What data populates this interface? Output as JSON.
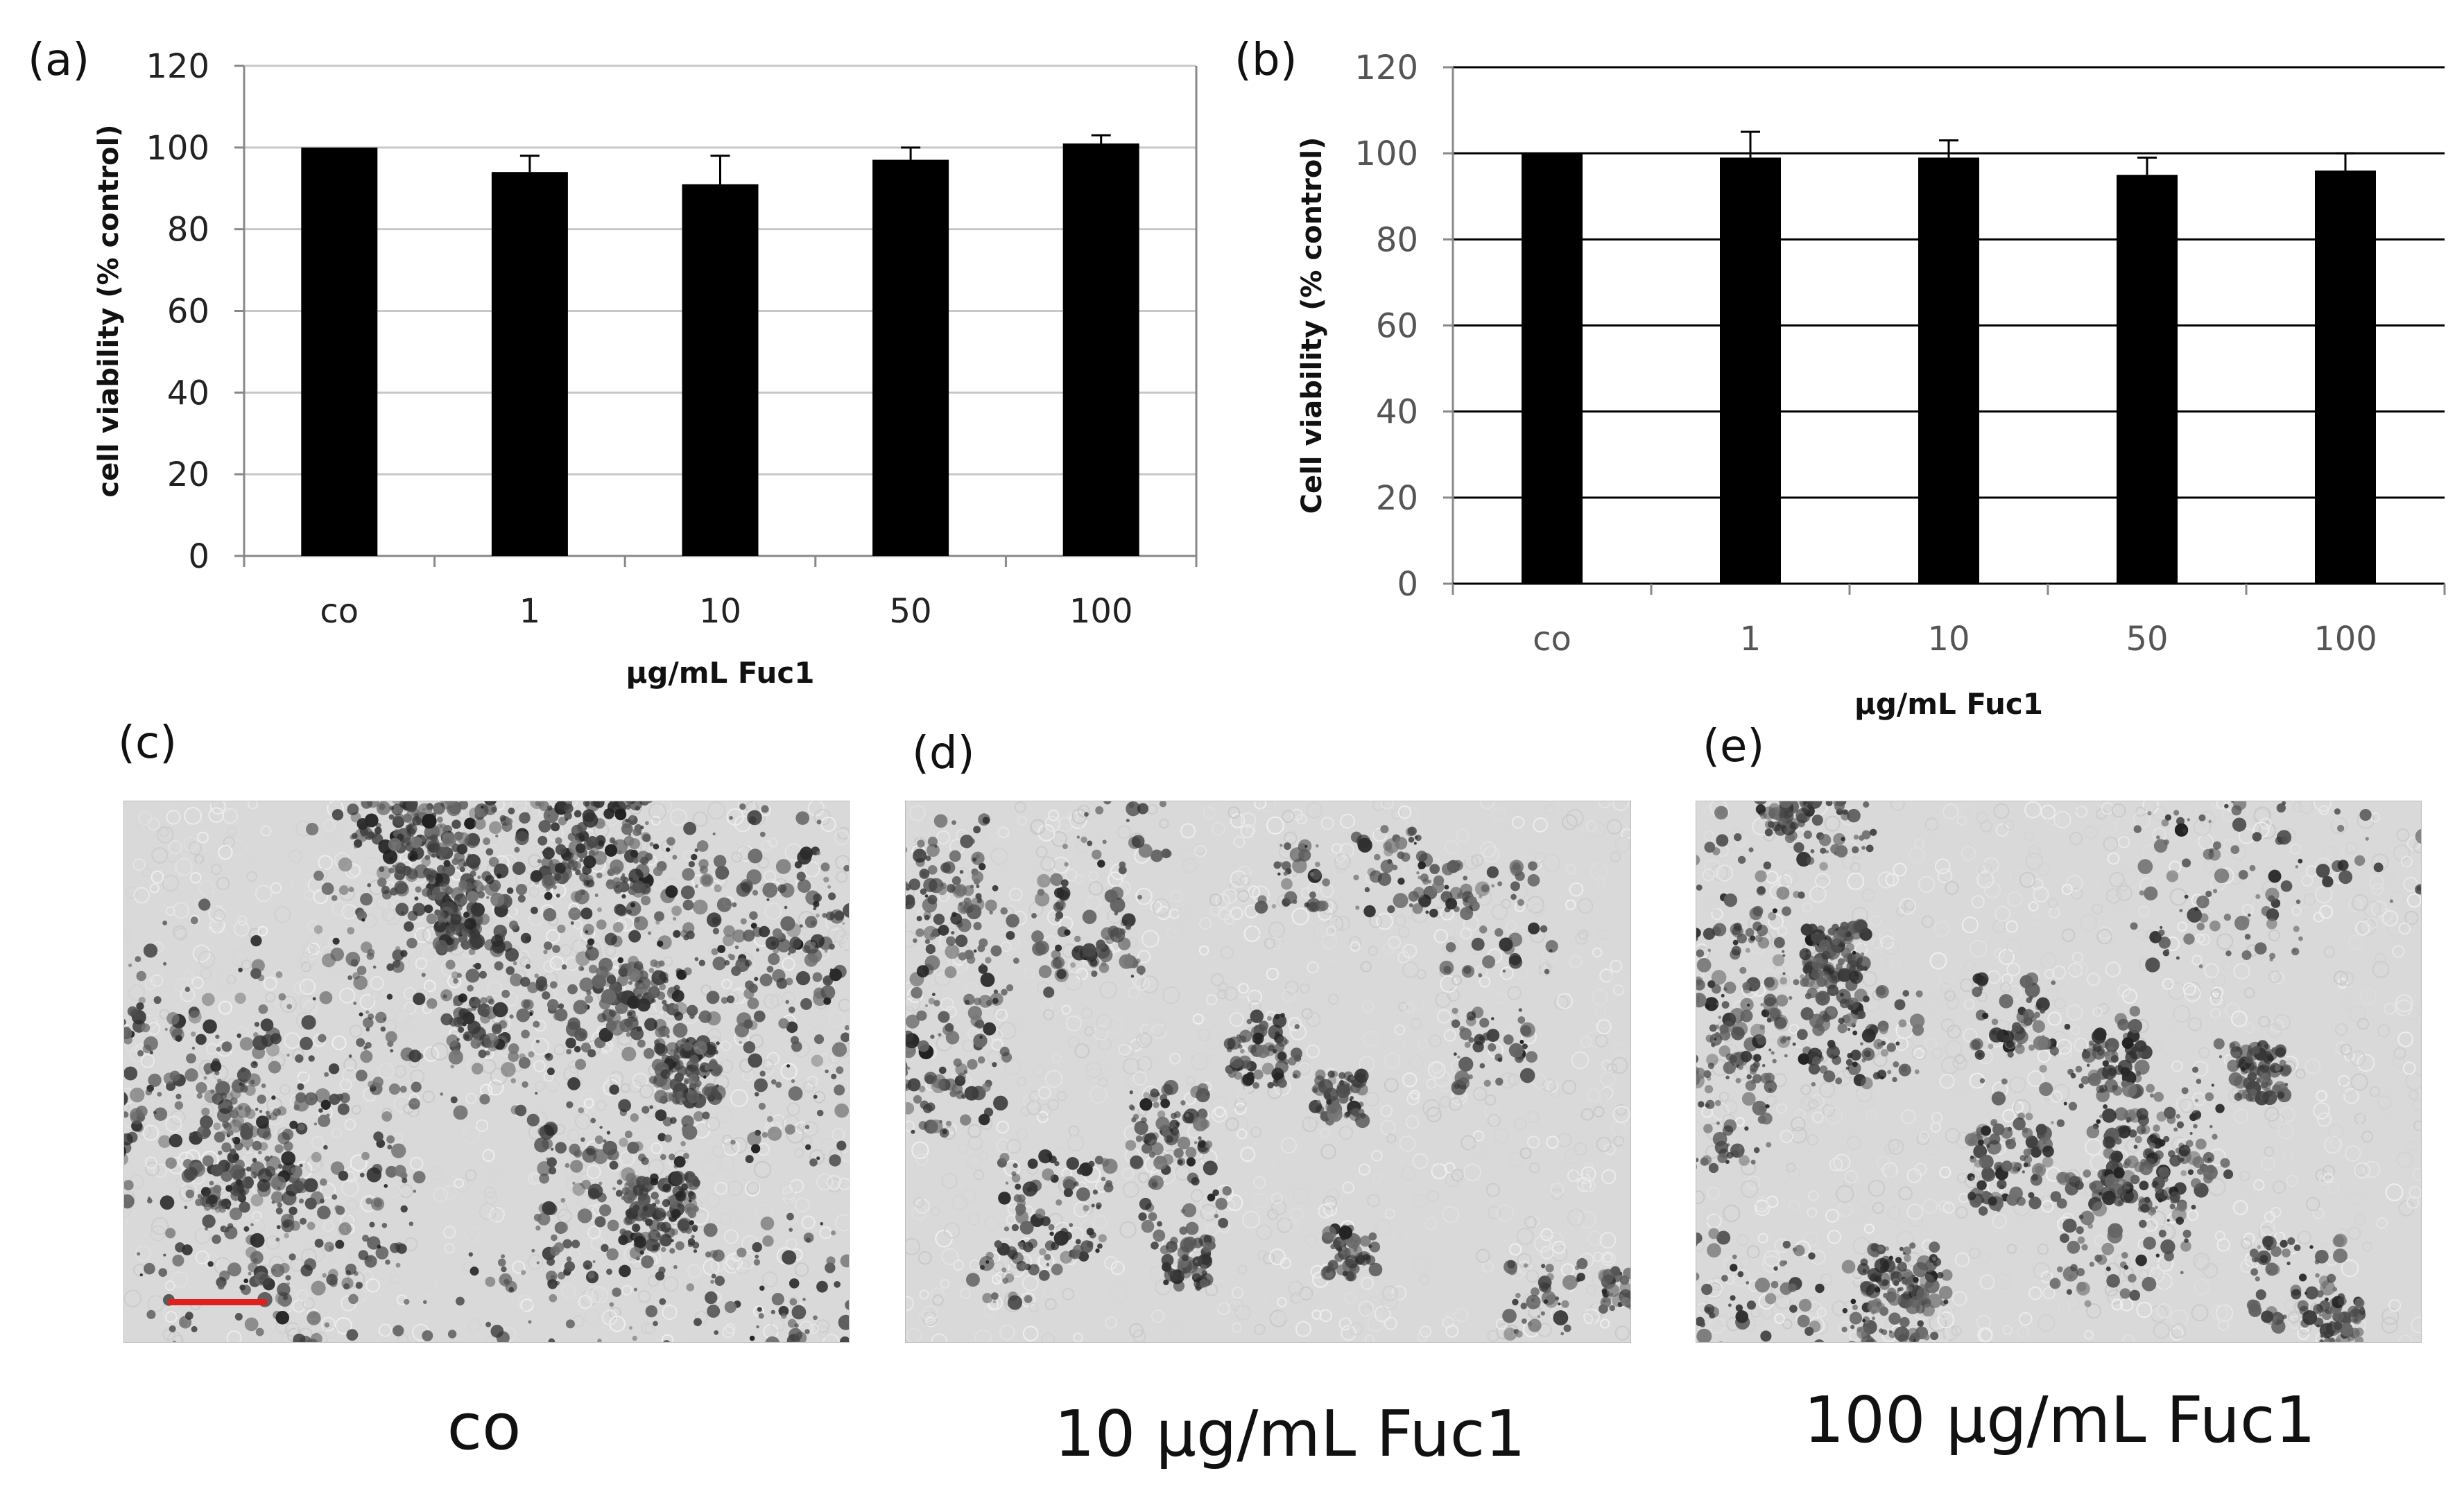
{
  "panels": {
    "a": {
      "label": "(a)"
    },
    "b": {
      "label": "(b)"
    },
    "c": {
      "label": "(c)",
      "caption": "co"
    },
    "d": {
      "label": "(d)",
      "caption": "10 µg/mL Fuc1"
    },
    "e": {
      "label": "(e)",
      "caption": "100 µg/mL Fuc1"
    }
  },
  "colors": {
    "bar": "#000000",
    "grid": "#c8c8c8",
    "grid_b": "#000000",
    "scalebar": "#e0201f",
    "micro_bg": "#d9d9d9"
  },
  "chart_data": [
    {
      "type": "bar",
      "panel": "a",
      "categories": [
        "co",
        "1",
        "10",
        "50",
        "100"
      ],
      "values": [
        100,
        94,
        91,
        97,
        101
      ],
      "errors": [
        0,
        4,
        7,
        3,
        2
      ],
      "xlabel": "µg/mL Fuc1",
      "ylabel": "cell viability (% control)",
      "ylim": [
        0,
        120
      ],
      "yticks": [
        "0",
        "20",
        "40",
        "60",
        "80",
        "100",
        "120"
      ],
      "grid": true
    },
    {
      "type": "bar",
      "panel": "b",
      "categories": [
        "co",
        "1",
        "10",
        "50",
        "100"
      ],
      "values": [
        100,
        99,
        99,
        95,
        96
      ],
      "errors": [
        0,
        6,
        4,
        4,
        4
      ],
      "xlabel": "µg/mL Fuc1",
      "ylabel": "Cell viability (% control)",
      "ylim": [
        0,
        120
      ],
      "yticks": [
        "0",
        "20",
        "40",
        "60",
        "80",
        "100",
        "120"
      ],
      "grid": true
    }
  ]
}
